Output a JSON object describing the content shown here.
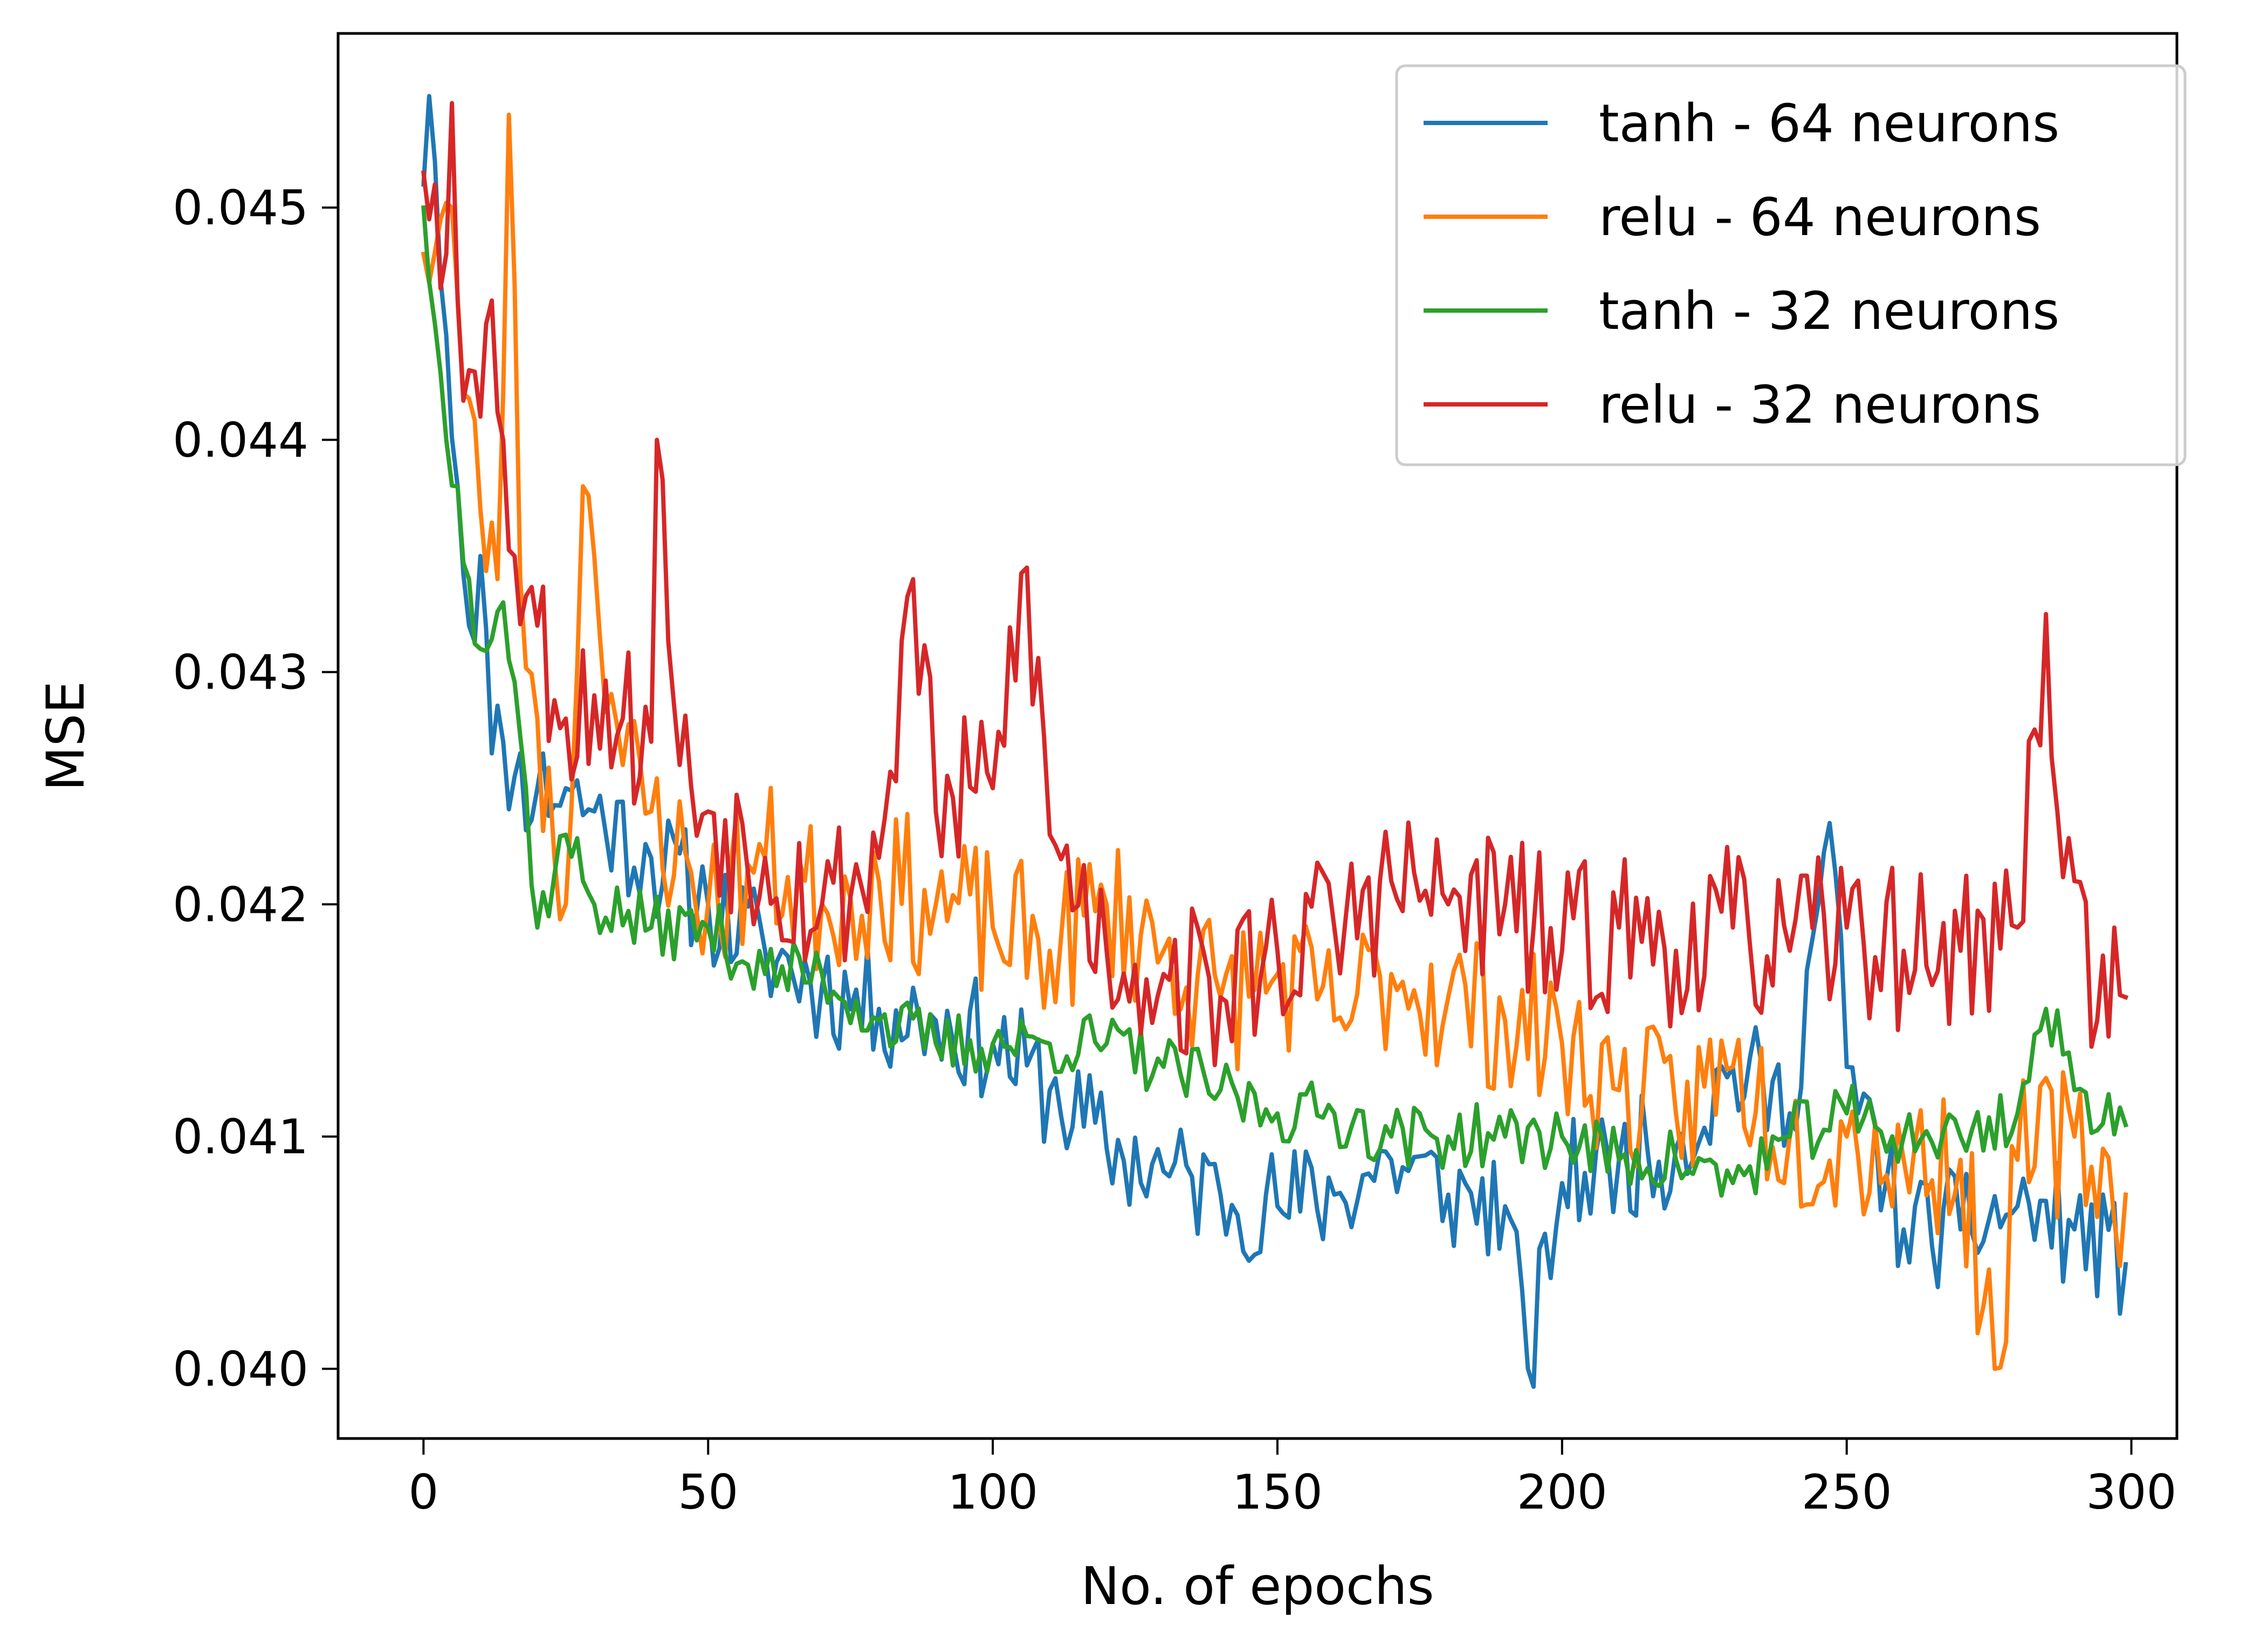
{
  "chart_data": {
    "type": "line",
    "title": "",
    "xlabel": "No. of epochs",
    "ylabel": "MSE",
    "xlim": [
      -15,
      308
    ],
    "ylim": [
      0.0397,
      0.04575
    ],
    "xticks": [
      0,
      50,
      100,
      150,
      200,
      250,
      300
    ],
    "yticks": [
      0.04,
      0.041,
      0.042,
      0.043,
      0.044,
      0.045
    ],
    "xtick_labels": [
      "0",
      "50",
      "100",
      "150",
      "200",
      "250",
      "300"
    ],
    "ytick_labels": [
      "0.040",
      "0.041",
      "0.042",
      "0.043",
      "0.044",
      "0.045"
    ],
    "grid": false,
    "legend_position": "top-right",
    "x": {
      "start": 0,
      "end": 299,
      "points": 300
    },
    "series": [
      {
        "name": "tanh - 64 neurons",
        "color": "#1f77b4",
        "keypoints": [
          [
            0,
            0.0451
          ],
          [
            1,
            0.04548
          ],
          [
            2,
            0.0452
          ],
          [
            4,
            0.04445
          ],
          [
            6,
            0.0438
          ],
          [
            8,
            0.0432
          ],
          [
            10,
            0.0435
          ],
          [
            12,
            0.04265
          ],
          [
            14,
            0.0427
          ],
          [
            16,
            0.04255
          ],
          [
            20,
            0.0425
          ],
          [
            25,
            0.0425
          ],
          [
            30,
            0.0424
          ],
          [
            40,
            0.0422
          ],
          [
            50,
            0.042
          ],
          [
            60,
            0.0418
          ],
          [
            70,
            0.04165
          ],
          [
            80,
            0.04155
          ],
          [
            90,
            0.0415
          ],
          [
            100,
            0.0414
          ],
          [
            110,
            0.0412
          ],
          [
            120,
            0.04095
          ],
          [
            130,
            0.04085
          ],
          [
            140,
            0.04075
          ],
          [
            150,
            0.0407
          ],
          [
            160,
            0.04075
          ],
          [
            170,
            0.0409
          ],
          [
            180,
            0.04075
          ],
          [
            190,
            0.0407
          ],
          [
            194,
            0.04
          ],
          [
            200,
            0.0408
          ],
          [
            210,
            0.0409
          ],
          [
            220,
            0.04095
          ],
          [
            230,
            0.0413
          ],
          [
            240,
            0.0411
          ],
          [
            247,
            0.04235
          ],
          [
            250,
            0.0413
          ],
          [
            260,
            0.0406
          ],
          [
            270,
            0.0406
          ],
          [
            280,
            0.0407
          ],
          [
            290,
            0.0406
          ],
          [
            299,
            0.04045
          ]
        ],
        "noise": 0.00026,
        "seed": 11
      },
      {
        "name": "relu - 64 neurons",
        "color": "#ff7f0e",
        "keypoints": [
          [
            0,
            0.0448
          ],
          [
            3,
            0.04495
          ],
          [
            5,
            0.045
          ],
          [
            7,
            0.0442
          ],
          [
            10,
            0.0437
          ],
          [
            13,
            0.0434
          ],
          [
            15,
            0.0454
          ],
          [
            17,
            0.0434
          ],
          [
            20,
            0.0428
          ],
          [
            23,
            0.0422
          ],
          [
            25,
            0.042
          ],
          [
            28,
            0.0438
          ],
          [
            30,
            0.0435
          ],
          [
            35,
            0.0426
          ],
          [
            40,
            0.0424
          ],
          [
            50,
            0.042
          ],
          [
            60,
            0.0422
          ],
          [
            70,
            0.042
          ],
          [
            80,
            0.0421
          ],
          [
            90,
            0.042
          ],
          [
            100,
            0.0419
          ],
          [
            110,
            0.0418
          ],
          [
            120,
            0.042
          ],
          [
            130,
            0.0418
          ],
          [
            140,
            0.0416
          ],
          [
            150,
            0.0417
          ],
          [
            160,
            0.0415
          ],
          [
            170,
            0.0417
          ],
          [
            180,
            0.0416
          ],
          [
            190,
            0.0415
          ],
          [
            200,
            0.0414
          ],
          [
            210,
            0.0412
          ],
          [
            220,
            0.0411
          ],
          [
            230,
            0.0413
          ],
          [
            240,
            0.041
          ],
          [
            250,
            0.041
          ],
          [
            260,
            0.0409
          ],
          [
            270,
            0.0409
          ],
          [
            276,
            0.04
          ],
          [
            280,
            0.0409
          ],
          [
            290,
            0.041
          ],
          [
            299,
            0.04075
          ]
        ],
        "noise": 0.00034,
        "seed": 23
      },
      {
        "name": "tanh - 32 neurons",
        "color": "#2ca02c",
        "keypoints": [
          [
            0,
            0.045
          ],
          [
            2,
            0.0445
          ],
          [
            4,
            0.044
          ],
          [
            6,
            0.0438
          ],
          [
            8,
            0.0434
          ],
          [
            10,
            0.0431
          ],
          [
            14,
            0.0433
          ],
          [
            18,
            0.0425
          ],
          [
            20,
            0.0419
          ],
          [
            25,
            0.0423
          ],
          [
            30,
            0.042
          ],
          [
            40,
            0.0419
          ],
          [
            50,
            0.0419
          ],
          [
            60,
            0.0417
          ],
          [
            70,
            0.0417
          ],
          [
            80,
            0.0415
          ],
          [
            90,
            0.0414
          ],
          [
            100,
            0.0414
          ],
          [
            110,
            0.0414
          ],
          [
            120,
            0.0414
          ],
          [
            130,
            0.0413
          ],
          [
            140,
            0.0412
          ],
          [
            150,
            0.0411
          ],
          [
            160,
            0.0411
          ],
          [
            170,
            0.041
          ],
          [
            180,
            0.041
          ],
          [
            190,
            0.041
          ],
          [
            200,
            0.041
          ],
          [
            210,
            0.0409
          ],
          [
            220,
            0.0409
          ],
          [
            230,
            0.0408
          ],
          [
            240,
            0.041
          ],
          [
            250,
            0.0411
          ],
          [
            260,
            0.041
          ],
          [
            270,
            0.041
          ],
          [
            280,
            0.0411
          ],
          [
            285,
            0.04155
          ],
          [
            290,
            0.0412
          ],
          [
            299,
            0.04105
          ]
        ],
        "noise": 0.00014,
        "seed": 37
      },
      {
        "name": "relu - 32 neurons",
        "color": "#d62728",
        "keypoints": [
          [
            0,
            0.04515
          ],
          [
            2,
            0.0451
          ],
          [
            4,
            0.0448
          ],
          [
            5,
            0.04545
          ],
          [
            6,
            0.0446
          ],
          [
            8,
            0.0443
          ],
          [
            10,
            0.0441
          ],
          [
            12,
            0.0446
          ],
          [
            14,
            0.044
          ],
          [
            16,
            0.0435
          ],
          [
            20,
            0.0432
          ],
          [
            25,
            0.0428
          ],
          [
            30,
            0.0429
          ],
          [
            35,
            0.0428
          ],
          [
            40,
            0.0427
          ],
          [
            41,
            0.044
          ],
          [
            45,
            0.0426
          ],
          [
            50,
            0.0424
          ],
          [
            60,
            0.0422
          ],
          [
            70,
            0.042
          ],
          [
            80,
            0.0422
          ],
          [
            86,
            0.0434
          ],
          [
            90,
            0.0424
          ],
          [
            100,
            0.0425
          ],
          [
            106,
            0.04345
          ],
          [
            110,
            0.0423
          ],
          [
            120,
            0.0418
          ],
          [
            130,
            0.0417
          ],
          [
            140,
            0.0416
          ],
          [
            150,
            0.0418
          ],
          [
            160,
            0.0419
          ],
          [
            170,
            0.0421
          ],
          [
            180,
            0.042
          ],
          [
            190,
            0.042
          ],
          [
            200,
            0.0418
          ],
          [
            210,
            0.0419
          ],
          [
            220,
            0.0418
          ],
          [
            230,
            0.0419
          ],
          [
            240,
            0.0418
          ],
          [
            250,
            0.0419
          ],
          [
            260,
            0.0418
          ],
          [
            270,
            0.0418
          ],
          [
            280,
            0.0419
          ],
          [
            285,
            0.04325
          ],
          [
            287,
            0.0424
          ],
          [
            290,
            0.0421
          ],
          [
            294,
            0.0415
          ],
          [
            297,
            0.0419
          ],
          [
            299,
            0.0416
          ]
        ],
        "noise": 0.00036,
        "seed": 53
      }
    ]
  }
}
